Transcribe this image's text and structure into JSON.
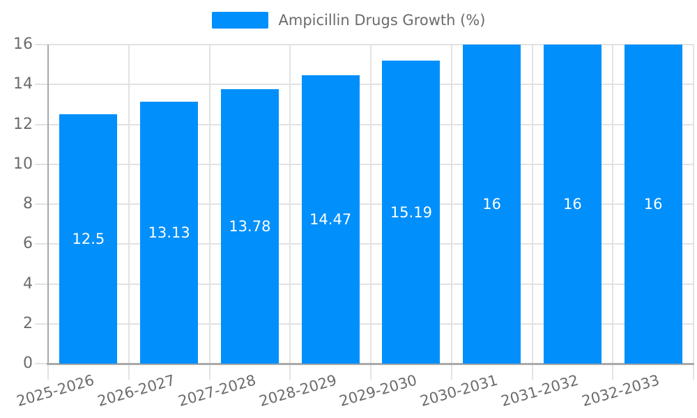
{
  "chart_data": {
    "type": "bar",
    "title": "Ampicillin Drugs Growth (%)",
    "legend_position": "top",
    "categories": [
      "2025-2026",
      "2026-2027",
      "2027-2028",
      "2028-2029",
      "2029-2030",
      "2030-2031",
      "2031-2032",
      "2032-2033"
    ],
    "series": [
      {
        "name": "Ampicillin Drugs Growth (%)",
        "color": "#008FFB",
        "values": [
          12.5,
          13.13,
          13.78,
          14.47,
          15.19,
          16,
          16,
          16
        ]
      }
    ],
    "value_labels": [
      "12.5",
      "13.13",
      "13.78",
      "14.47",
      "15.19",
      "16",
      "16",
      "16"
    ],
    "xlabel": "",
    "ylabel": "",
    "ylim": [
      0,
      16
    ],
    "yticks": [
      0,
      2,
      4,
      6,
      8,
      10,
      12,
      14,
      16
    ],
    "ytick_labels": [
      "0",
      "2",
      "4",
      "6",
      "8",
      "10",
      "12",
      "14",
      "16"
    ],
    "grid": true
  },
  "colors": {
    "bar": "#008FFB",
    "grid": "#e2e2e2",
    "axis": "#a9a9a9",
    "axis_label": "#6b6b6b",
    "legend_text": "#6b6b6b",
    "value_label": "#ffffff",
    "background": "#ffffff"
  }
}
